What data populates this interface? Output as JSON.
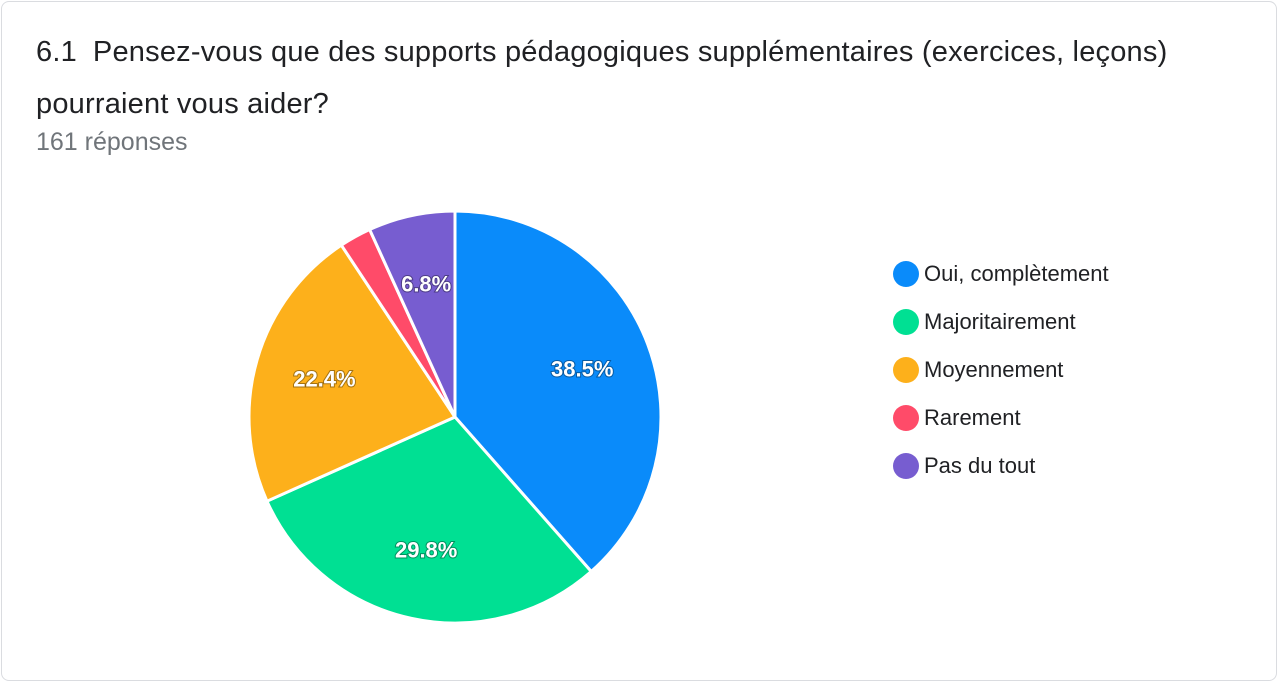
{
  "question": {
    "number": "6.1",
    "text": "Pensez-vous que des supports pédagogiques supplémentaires (exercices, leçons) pourraient vous aider?",
    "responses": "161 réponses"
  },
  "chart_data": {
    "type": "pie",
    "title": "Pensez-vous que des supports pédagogiques supplémentaires (exercices, leçons) pourraient vous aider?",
    "categories": [
      "Oui, complètement",
      "Majoritairement",
      "Moyennement",
      "Rarement",
      "Pas du tout"
    ],
    "values": [
      38.5,
      29.8,
      22.4,
      2.5,
      6.8
    ],
    "value_labels": [
      "38.5%",
      "29.8%",
      "22.4%",
      "",
      "6.8%"
    ],
    "colors": [
      "#0a8bfa",
      "#00e093",
      "#fdb01b",
      "#ff4b69",
      "#775dd0"
    ],
    "legend_position": "right",
    "start_angle": "12 o'clock, clockwise"
  }
}
